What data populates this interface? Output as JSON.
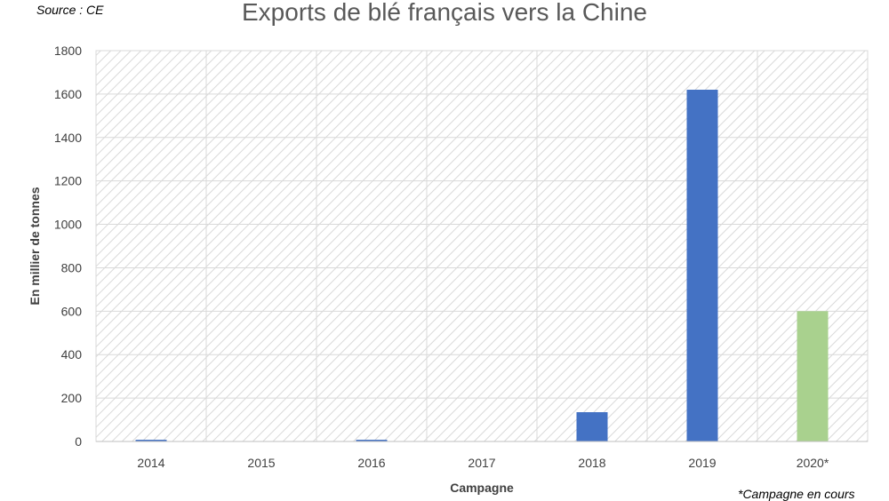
{
  "source": "Source : CE",
  "footnote": "*Campagne en cours",
  "chart_data": {
    "type": "bar",
    "title": "Exports de blé français vers la Chine",
    "xlabel": "Campagne",
    "ylabel": "En millier de tonnes",
    "categories": [
      "2014",
      "2015",
      "2016",
      "2017",
      "2018",
      "2019",
      "2020*"
    ],
    "values": [
      8,
      0,
      8,
      0,
      135,
      1620,
      600
    ],
    "bar_colors": [
      "#4472c4",
      "#4472c4",
      "#4472c4",
      "#4472c4",
      "#4472c4",
      "#4472c4",
      "#a9d18e"
    ],
    "ylim": [
      0,
      1800
    ],
    "yticks": [
      0,
      200,
      400,
      600,
      800,
      1000,
      1200,
      1400,
      1600,
      1800
    ],
    "grid": true
  }
}
